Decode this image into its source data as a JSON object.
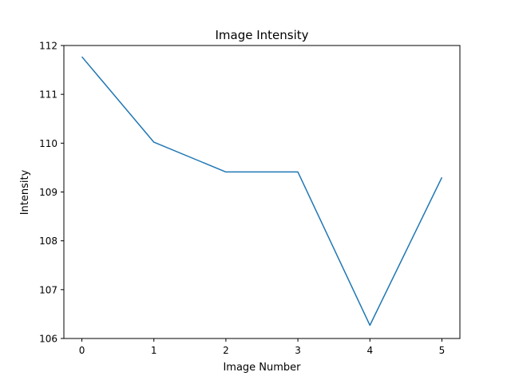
{
  "chart_data": {
    "type": "line",
    "title": "Image Intensity",
    "xlabel": "Image Number",
    "ylabel": "Intensity",
    "x": [
      0,
      1,
      2,
      3,
      4,
      5
    ],
    "series": [
      {
        "values": [
          111.77,
          110.02,
          109.41,
          109.41,
          106.27,
          109.3
        ]
      }
    ],
    "xticks": [
      "0",
      "1",
      "2",
      "3",
      "4",
      "5"
    ],
    "yticks": [
      "106",
      "107",
      "108",
      "109",
      "110",
      "111",
      "112"
    ],
    "xlim": [
      -0.25,
      5.25
    ],
    "ylim": [
      106,
      112
    ],
    "grid": false,
    "colors": {
      "line": "#1f77b4",
      "axes": "#000000",
      "background": "#ffffff"
    }
  }
}
